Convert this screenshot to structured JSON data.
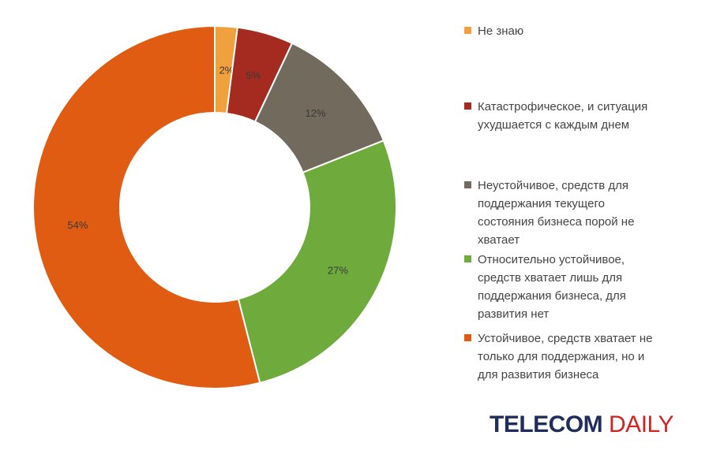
{
  "chart_data": {
    "type": "pie",
    "variant": "donut",
    "title": "",
    "slices": [
      {
        "label": "Не знаю",
        "value": 2,
        "display": "2%",
        "color": "#f0a03c"
      },
      {
        "label": "Катастрофическое, и ситуация ухудшается с каждым днем",
        "value": 5,
        "display": "5%",
        "color": "#a52a1f"
      },
      {
        "label": "Неустойчивое, средств для поддержания текущего состояния бизнеса порой не хватает",
        "value": 12,
        "display": "12%",
        "color": "#736a5e"
      },
      {
        "label": "Относительно устойчивое, средств хватает лишь для поддержания бизнеса, для развития нет",
        "value": 27,
        "display": "27%",
        "color": "#6eab3c"
      },
      {
        "label": "Устойчивое, средств хватает не только для поддержания, но и для развития бизнеса",
        "value": 54,
        "display": "54%",
        "color": "#e05c12"
      }
    ],
    "legend_position": "right",
    "legend_lines": [
      [
        "Не знаю"
      ],
      [
        "Катастрофическое, и ситуация",
        "ухудшается с каждым днем"
      ],
      [
        "Неустойчивое, средств для",
        "поддержания текущего",
        "состояния бизнеса порой не",
        "хватает"
      ],
      [
        "Относительно устойчивое,",
        "средств хватает лишь для",
        "поддержания бизнеса, для",
        "развития нет"
      ],
      [
        "Устойчивое, средств хватает не",
        "только для поддержания, но и",
        "для развития бизнеса"
      ]
    ]
  },
  "logo": {
    "part1": "TELECOM",
    "part2": "DAILY"
  }
}
